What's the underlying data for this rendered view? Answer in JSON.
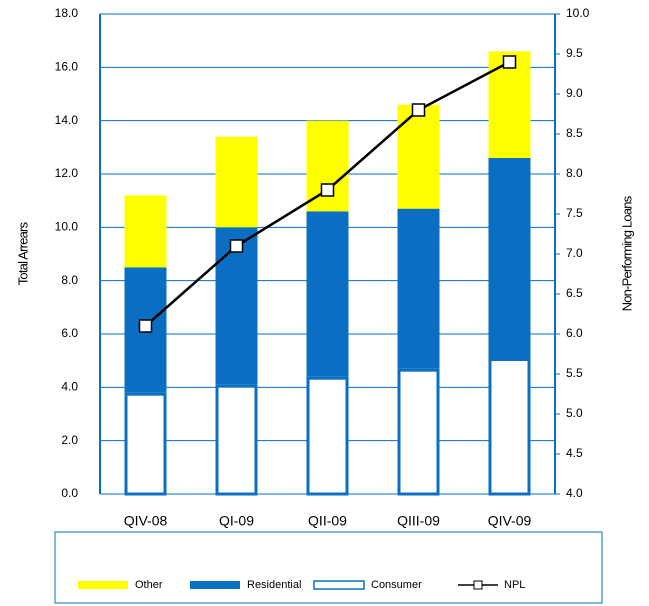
{
  "chart_data": {
    "type": "bar",
    "stacked": true,
    "categories": [
      "QIV-08",
      "QI-09",
      "QII-09",
      "QIII-09",
      "QIV-09"
    ],
    "y_label": "Total Arrears",
    "y2_label": "Non-Performing Loans",
    "series": [
      {
        "name": "Consumer",
        "color": "#ffffff",
        "stroke": "#0a6fc2",
        "values": [
          3.8,
          4.1,
          4.4,
          4.7,
          5.1
        ]
      },
      {
        "name": "Residential",
        "color": "#0a6fc2",
        "values": [
          4.7,
          5.9,
          6.2,
          6.0,
          7.5
        ]
      },
      {
        "name": "Other",
        "color": "#ffff00",
        "values": [
          2.7,
          3.4,
          3.4,
          3.9,
          4.0
        ]
      },
      {
        "name": "NPL",
        "type": "line",
        "axis": "y2",
        "color": "#000000",
        "values": [
          6.1,
          7.1,
          7.8,
          8.8,
          9.4
        ]
      }
    ],
    "ylim": [
      0,
      18
    ],
    "yticks": [
      {
        "value": 0,
        "label": "0.0"
      },
      {
        "value": 2,
        "label": "2.0"
      },
      {
        "value": 4,
        "label": "4.0"
      },
      {
        "value": 6,
        "label": "6.0"
      },
      {
        "value": 8,
        "label": "8.0"
      },
      {
        "value": 10,
        "label": "10.0"
      },
      {
        "value": 12,
        "label": "12.0"
      },
      {
        "value": 14,
        "label": "14.0"
      },
      {
        "value": 16,
        "label": "16.0"
      },
      {
        "value": 18,
        "label": "18.0"
      }
    ],
    "y2lim": [
      4,
      10
    ],
    "y2ticks": [
      {
        "value": 4,
        "label": "4.0"
      },
      {
        "value": 4.5,
        "label": "4.5"
      },
      {
        "value": 5,
        "label": "5.0"
      },
      {
        "value": 5.5,
        "label": "5.5"
      },
      {
        "value": 6,
        "label": "6.0"
      },
      {
        "value": 6.5,
        "label": "6.5"
      },
      {
        "value": 7,
        "label": "7.0"
      },
      {
        "value": 7.5,
        "label": "7.5"
      },
      {
        "value": 8,
        "label": "8.0"
      },
      {
        "value": 8.5,
        "label": "8.5"
      },
      {
        "value": 9,
        "label": "9.0"
      },
      {
        "value": 9.5,
        "label": "9.5"
      },
      {
        "value": 10,
        "label": "10.0"
      }
    ],
    "grid": true,
    "grid_color": "#0a6fc2",
    "legend": "bottom"
  }
}
